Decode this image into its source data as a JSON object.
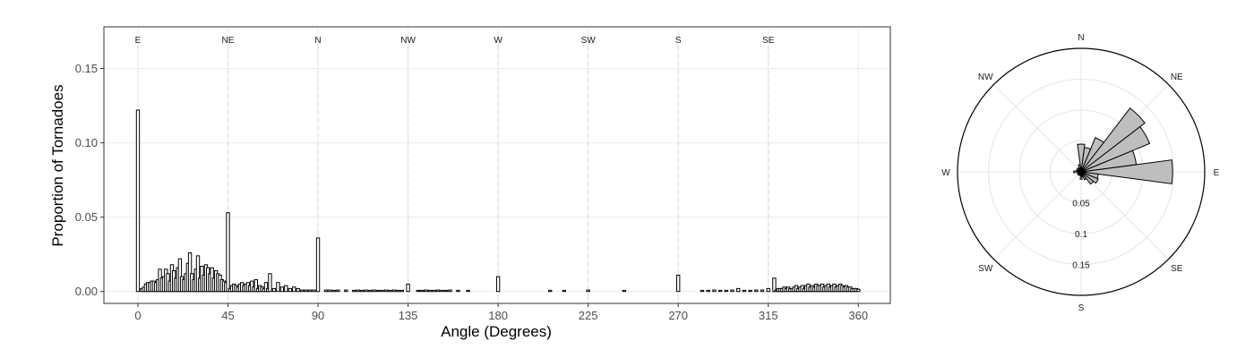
{
  "chart_data": [
    {
      "type": "bar",
      "xlabel": "Angle (Degrees)",
      "ylabel": "Proportion of Tornadoes",
      "xlim": [
        -17,
        376
      ],
      "ylim": [
        -0.008,
        0.178
      ],
      "x_ticks": [
        0,
        45,
        90,
        135,
        180,
        225,
        270,
        315,
        360
      ],
      "y_ticks": [
        0.0,
        0.05,
        0.1,
        0.15
      ],
      "y_tick_labels": [
        "0.00",
        "0.05",
        "0.10",
        "0.15"
      ],
      "grid": true,
      "bar_width_deg": 1.5,
      "bar_fill": "#ffffff",
      "bar_stroke": "#000000",
      "direction_lines": [
        {
          "label": "E",
          "x": 0
        },
        {
          "label": "NE",
          "x": 45
        },
        {
          "label": "N",
          "x": 90
        },
        {
          "label": "NW",
          "x": 135
        },
        {
          "label": "W",
          "x": 180
        },
        {
          "label": "SW",
          "x": 225
        },
        {
          "label": "S",
          "x": 270
        },
        {
          "label": "SE",
          "x": 315
        }
      ],
      "x": [
        0,
        2,
        3,
        4,
        5,
        6,
        7,
        8,
        9,
        10,
        11,
        12,
        13,
        14,
        15,
        16,
        17,
        18,
        19,
        20,
        21,
        22,
        23,
        24,
        25,
        26,
        27,
        28,
        29,
        30,
        31,
        32,
        33,
        34,
        35,
        36,
        37,
        38,
        39,
        40,
        41,
        42,
        43,
        44,
        45,
        46,
        47,
        48,
        49,
        50,
        51,
        52,
        53,
        54,
        55,
        56,
        57,
        58,
        59,
        60,
        61,
        62,
        63,
        64,
        65,
        66,
        68,
        70,
        72,
        74,
        76,
        78,
        80,
        82,
        84,
        86,
        88,
        90,
        94,
        96,
        98,
        100,
        104,
        108,
        110,
        112,
        114,
        116,
        118,
        120,
        122,
        124,
        126,
        128,
        130,
        132,
        135,
        140,
        142,
        144,
        146,
        148,
        150,
        152,
        154,
        156,
        160,
        165,
        180,
        206,
        213,
        225,
        243,
        270,
        282,
        285,
        288,
        291,
        294,
        297,
        300,
        303,
        306,
        309,
        312,
        315,
        318,
        319,
        320,
        321,
        322,
        323,
        324,
        325,
        326,
        327,
        328,
        329,
        330,
        331,
        332,
        333,
        334,
        335,
        336,
        337,
        338,
        339,
        340,
        341,
        342,
        343,
        344,
        345,
        346,
        347,
        348,
        349,
        350,
        351,
        352,
        353,
        354,
        355,
        356,
        357,
        358,
        359,
        360
      ],
      "values": [
        0.122,
        0.002,
        0.003,
        0.005,
        0.006,
        0.006,
        0.007,
        0.007,
        0.006,
        0.008,
        0.015,
        0.009,
        0.01,
        0.015,
        0.012,
        0.007,
        0.018,
        0.014,
        0.009,
        0.016,
        0.022,
        0.01,
        0.008,
        0.012,
        0.019,
        0.026,
        0.012,
        0.008,
        0.015,
        0.024,
        0.009,
        0.017,
        0.011,
        0.018,
        0.016,
        0.012,
        0.016,
        0.009,
        0.014,
        0.012,
        0.011,
        0.008,
        0.007,
        0.006,
        0.053,
        0.002,
        0.004,
        0.005,
        0.004,
        0.003,
        0.005,
        0.006,
        0.004,
        0.005,
        0.006,
        0.004,
        0.007,
        0.003,
        0.008,
        0.002,
        0.004,
        0.003,
        0.002,
        0.006,
        0.002,
        0.012,
        0.002,
        0.006,
        0.003,
        0.004,
        0.002,
        0.003,
        0.002,
        0.001,
        0.001,
        0.001,
        0.001,
        0.036,
        0.001,
        0.001,
        0.0008,
        0.001,
        0.001,
        0.0008,
        0.001,
        0.0008,
        0.001,
        0.0008,
        0.001,
        0.0008,
        0.0008,
        0.001,
        0.0008,
        0.001,
        0.0008,
        0.0008,
        0.005,
        0.0008,
        0.0008,
        0.001,
        0.0008,
        0.0008,
        0.001,
        0.0008,
        0.0008,
        0.001,
        0.0008,
        0.0008,
        0.01,
        0.0008,
        0.0008,
        0.001,
        0.0008,
        0.011,
        0.0008,
        0.0008,
        0.001,
        0.0008,
        0.0008,
        0.001,
        0.002,
        0.0008,
        0.0008,
        0.001,
        0.001,
        0.002,
        0.009,
        0.001,
        0.002,
        0.002,
        0.002,
        0.003,
        0.002,
        0.003,
        0.002,
        0.002,
        0.003,
        0.004,
        0.002,
        0.003,
        0.004,
        0.002,
        0.004,
        0.005,
        0.003,
        0.004,
        0.003,
        0.005,
        0.004,
        0.004,
        0.005,
        0.003,
        0.004,
        0.005,
        0.003,
        0.004,
        0.005,
        0.003,
        0.004,
        0.005,
        0.004,
        0.003,
        0.004,
        0.003,
        0.003,
        0.002,
        0.002,
        0.002,
        0.0015
      ]
    },
    {
      "type": "polar-bar",
      "direction_labels": [
        "N",
        "NE",
        "E",
        "SE",
        "S",
        "SW",
        "W",
        "NW"
      ],
      "radial_tick_labels": [
        "0.05",
        "0.1",
        "0.15"
      ],
      "radial_ticks": [
        0.05,
        0.1,
        0.15
      ],
      "r_max": 0.2,
      "bar_fill": "#bebebe",
      "bar_stroke": "#000000",
      "sectors": [
        {
          "angle": 0,
          "value": 0.148
        },
        {
          "angle": 15,
          "value": 0.09
        },
        {
          "angle": 30,
          "value": 0.12
        },
        {
          "angle": 45,
          "value": 0.13
        },
        {
          "angle": 60,
          "value": 0.06
        },
        {
          "angle": 75,
          "value": 0.04
        },
        {
          "angle": 90,
          "value": 0.045
        },
        {
          "angle": 105,
          "value": 0.012
        },
        {
          "angle": 120,
          "value": 0.006
        },
        {
          "angle": 135,
          "value": 0.008
        },
        {
          "angle": 150,
          "value": 0.005
        },
        {
          "angle": 165,
          "value": 0.008
        },
        {
          "angle": 180,
          "value": 0.012
        },
        {
          "angle": 195,
          "value": 0.006
        },
        {
          "angle": 210,
          "value": 0.006
        },
        {
          "angle": 225,
          "value": 0.007
        },
        {
          "angle": 240,
          "value": 0.006
        },
        {
          "angle": 255,
          "value": 0.006
        },
        {
          "angle": 270,
          "value": 0.012
        },
        {
          "angle": 285,
          "value": 0.008
        },
        {
          "angle": 300,
          "value": 0.014
        },
        {
          "angle": 315,
          "value": 0.025
        },
        {
          "angle": 330,
          "value": 0.03
        },
        {
          "angle": 345,
          "value": 0.028
        }
      ]
    }
  ]
}
